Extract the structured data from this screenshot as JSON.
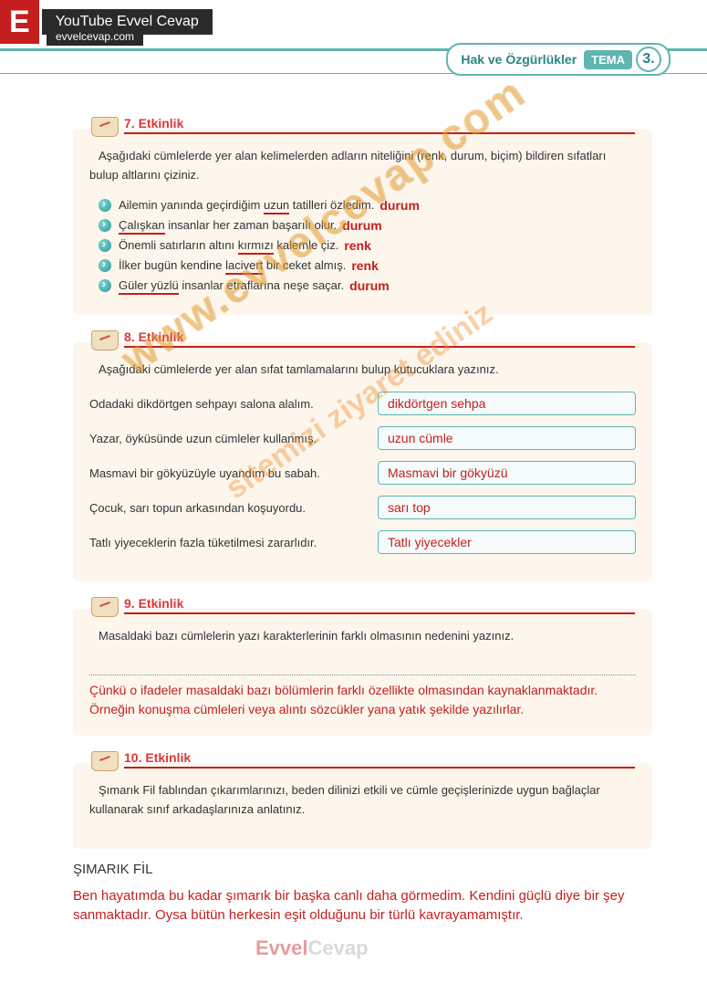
{
  "header": {
    "logo": "E",
    "title": "YouTube Evvel Cevap",
    "site": "evvelcevap.com"
  },
  "topic": {
    "title": "Hak ve Özgürlükler",
    "label": "TEMA",
    "number": "3."
  },
  "watermarks": {
    "main": "www.evvelcevap.com",
    "sub": "sitemizi ziyaret ediniz",
    "footer_left": "Evvel",
    "footer_right": "Cevap"
  },
  "activity7": {
    "title": "7. Etkinlik",
    "instruction": "Aşağıdaki cümlelerde yer alan kelimelerden adların niteliğini (renk, durum, biçim) bildiren sıfatları bulup altlarını çiziniz.",
    "lines": [
      {
        "pre": "Ailemin yanında geçirdiğim ",
        "ul": "uzun",
        "post": " tatilleri özledim.",
        "ans": "durum"
      },
      {
        "pre": "",
        "ul": "Çalışkan",
        "post": " insanlar her zaman başarılı olur.",
        "ans": "durum"
      },
      {
        "pre": "Önemli satırların altını ",
        "ul": "kırmızı",
        "post": " kalemle çiz.",
        "ans": "renk"
      },
      {
        "pre": "İlker bugün kendine ",
        "ul": "lacivert",
        "post": " bir ceket almış.",
        "ans": "renk"
      },
      {
        "pre": "",
        "ul": "Güler yüzlü",
        "post": " insanlar etraflarına neşe saçar.",
        "ans": "durum"
      }
    ]
  },
  "activity8": {
    "title": "8. Etkinlik",
    "instruction": "Aşağıdaki cümlelerde yer alan sıfat tamlamalarını bulup kutucuklara yazınız.",
    "pairs": [
      {
        "sentence": "Odadaki dikdörtgen sehpayı salona alalım.",
        "answer": "dikdörtgen sehpa"
      },
      {
        "sentence": "Yazar, öyküsünde uzun cümleler kullanmış.",
        "answer": "uzun cümle"
      },
      {
        "sentence": "Masmavi bir gökyüzüyle uyandım bu sabah.",
        "answer": "Masmavi bir gökyüzü"
      },
      {
        "sentence": "Çocuk, sarı topun arkasından koşuyordu.",
        "answer": "sarı top"
      },
      {
        "sentence": "Tatlı yiyeceklerin fazla tüketilmesi zararlıdır.",
        "answer": "Tatlı yiyecekler"
      }
    ]
  },
  "activity9": {
    "title": "9. Etkinlik",
    "instruction": "Masaldaki bazı cümlelerin yazı karakterlerinin farklı olmasının nedenini yazınız.",
    "answer": "Çünkü o ifadeler masaldaki bazı bölümlerin farklı özellikte olmasından kaynaklanmaktadır. Örneğin konuşma cümleleri veya alıntı sözcükler yana yatık şekilde yazılırlar."
  },
  "activity10": {
    "title": "10. Etkinlik",
    "instruction": "Şımarık Fil fablından çıkarımlarınızı, beden dilinizi etkili ve cümle geçişlerinizde uygun bağlaçlar kullanarak sınıf arkadaşlarınıza anlatınız.",
    "story_title": "ŞIMARIK FİL",
    "story_body": "Ben hayatımda bu kadar şımarık bir başka canlı daha görmedim. Kendini güçlü diye bir şey sanmaktadır. Oysa bütün herkesin eşit olduğunu bir türlü kavrayamamıştır."
  }
}
